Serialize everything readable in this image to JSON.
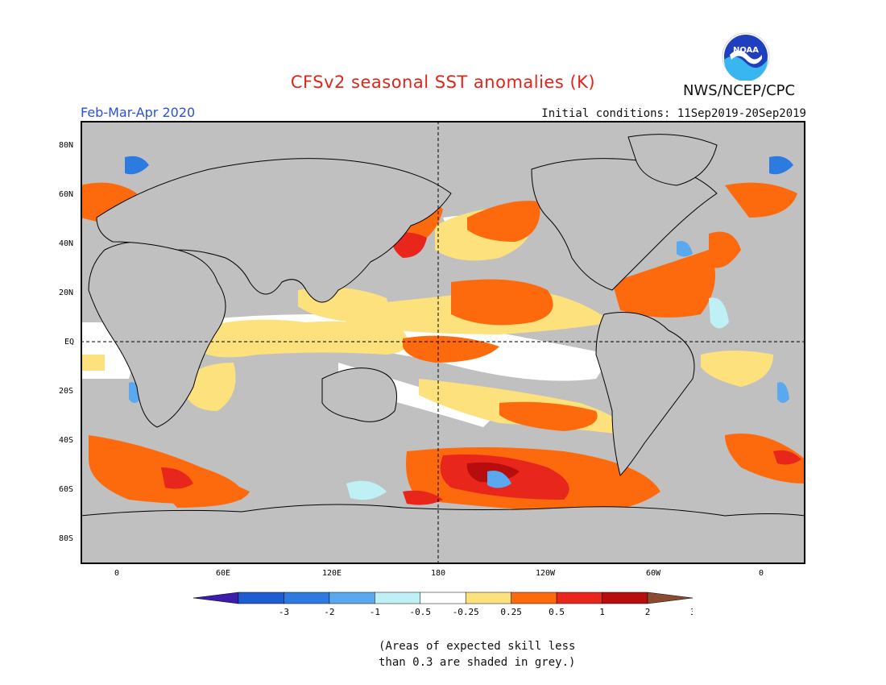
{
  "header": {
    "title": "CFSv2 seasonal SST anomalies (K)",
    "organization": "NWS/NCEP/CPC",
    "season": "Feb-Mar-Apr 2020",
    "initial_conditions": "Initial conditions: 11Sep2019-20Sep2019",
    "logo_text": "NOAA"
  },
  "map": {
    "lon_labels": [
      "0",
      "60E",
      "120E",
      "180",
      "120W",
      "60W",
      "0"
    ],
    "lat_labels": [
      "80N",
      "60N",
      "40N",
      "20N",
      "EQ",
      "20S",
      "40S",
      "60S",
      "80S"
    ],
    "colors": {
      "land_mask": "#c0c0c0",
      "neutral": "#ffffff",
      "warm_025": "#fde17d",
      "warm_05": "#fd6a0e",
      "warm_1": "#e8261b",
      "warm_2": "#b80d0d",
      "cool_025": "#bff0f5",
      "cool_05": "#5aa8f0",
      "cool_1": "#2d7ae0"
    }
  },
  "colorbar": {
    "labels": [
      "-3",
      "-2",
      "-1",
      "-0.5",
      "-0.25",
      "0.25",
      "0.5",
      "1",
      "2",
      "3"
    ],
    "colors": [
      "#3a1dab",
      "#1e5dd1",
      "#2d7ae0",
      "#5aa8f0",
      "#bff0f5",
      "#ffffff",
      "#fde17d",
      "#fd6a0e",
      "#e8261b",
      "#b80d0d",
      "#8a4b30"
    ]
  },
  "note": {
    "line1": "(Areas of expected skill less",
    "line2": "than 0.3 are shaded in grey.)"
  }
}
